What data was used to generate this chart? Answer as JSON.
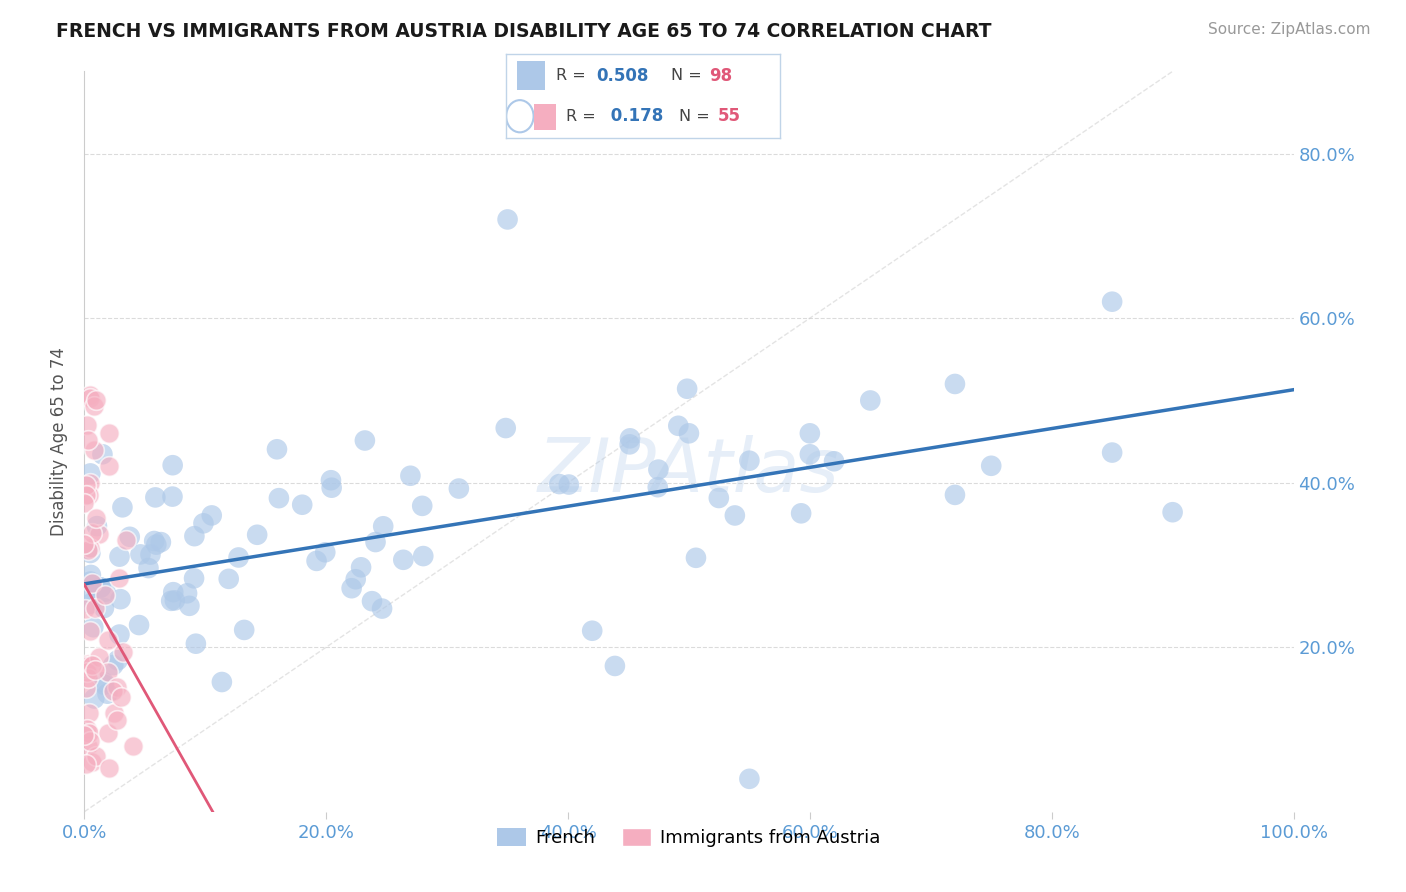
{
  "title": "FRENCH VS IMMIGRANTS FROM AUSTRIA DISABILITY AGE 65 TO 74 CORRELATION CHART",
  "source": "Source: ZipAtlas.com",
  "ylabel": "Disability Age 65 to 74",
  "xlim": [
    0,
    1.0
  ],
  "ylim": [
    0,
    0.9
  ],
  "ytick_labels": [
    "20.0%",
    "40.0%",
    "60.0%",
    "80.0%"
  ],
  "ytick_vals": [
    0.2,
    0.4,
    0.6,
    0.8
  ],
  "xtick_labels": [
    "0.0%",
    "20.0%",
    "40.0%",
    "60.0%",
    "80.0%",
    "100.0%"
  ],
  "xtick_vals": [
    0.0,
    0.2,
    0.4,
    0.6,
    0.8,
    1.0
  ],
  "french_R": 0.508,
  "french_N": 98,
  "austria_R": 0.178,
  "austria_N": 55,
  "french_color": "#adc8e8",
  "french_line_color": "#3474b7",
  "austria_color": "#f5aec0",
  "austria_line_color": "#e05878",
  "ref_line_color": "#dddddd",
  "watermark": "ZIPAtlas",
  "axis_color": "#5b9bd5",
  "legend_border_color": "#c0d4e8",
  "legend_R_color": "#3474b7",
  "legend_N_color": "#e05878",
  "title_color": "#1a1a1a"
}
